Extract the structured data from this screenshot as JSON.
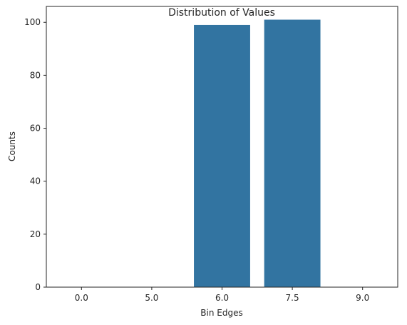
{
  "chart_data": {
    "type": "bar",
    "title": "Distribution of Values",
    "xlabel": "Bin Edges",
    "ylabel": "Counts",
    "categories": [
      "0.0",
      "5.0",
      "6.0",
      "7.5",
      "9.0"
    ],
    "values": [
      0,
      0,
      99,
      101,
      0
    ],
    "ylim": [
      0,
      106
    ],
    "yticks": [
      0,
      20,
      40,
      60,
      80,
      100
    ],
    "bar_color": "#3274a1",
    "grid": false,
    "legend": "none"
  }
}
